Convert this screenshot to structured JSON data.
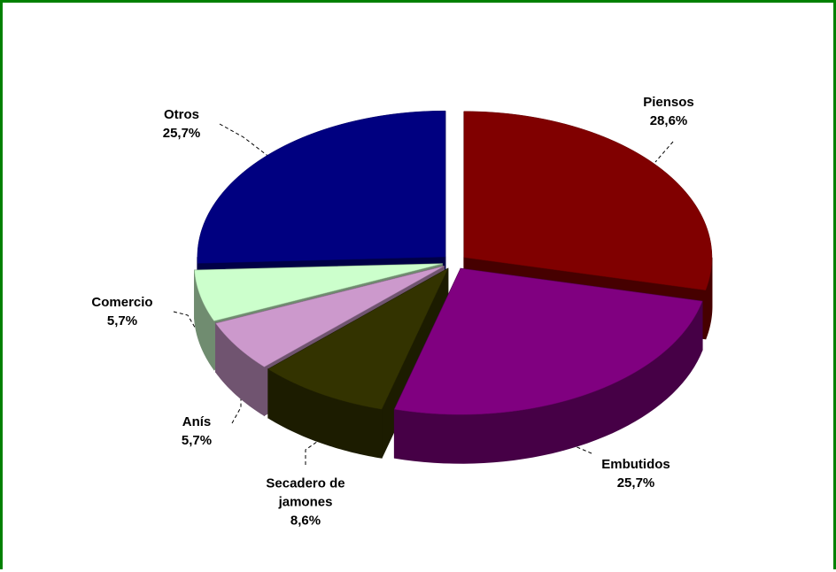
{
  "chart_data": {
    "type": "pie",
    "categories": [
      "Piensos",
      "Embutidos",
      "Secadero de jamones",
      "Anís",
      "Comercio",
      "Otros"
    ],
    "values": [
      28.6,
      25.7,
      8.6,
      5.7,
      5.7,
      25.7
    ],
    "value_labels": [
      "28,6%",
      "25,7%",
      "8,6%",
      "5,7%",
      "5,7%",
      "25,7%"
    ],
    "colors": [
      "#800000",
      "#800080",
      "#333300",
      "#cc99cc",
      "#ccffcc",
      "#000080"
    ]
  }
}
